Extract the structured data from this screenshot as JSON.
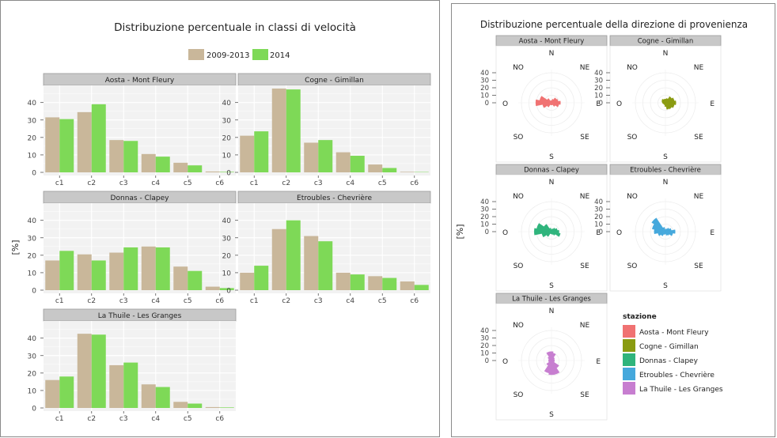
{
  "left": {
    "title": "Distribuzione percentuale in classi di velocità",
    "legend": [
      "2009-2013",
      "2014"
    ],
    "y_label": "[%]",
    "colors": {
      "series_a": "#c9b79a",
      "series_b": "#7ed957",
      "strip": "#c8c8c8",
      "plot_bg": "#f2f2f2",
      "grid": "#ffffff"
    }
  },
  "right": {
    "title": "Distribuzione percentuale della direzione di provenienza",
    "y_label": "[%]",
    "legend_title": "stazione",
    "directions": {
      "n": "N",
      "ne": "NE",
      "e": "E",
      "se": "SE",
      "s": "S",
      "so": "SO",
      "o": "O",
      "no": "NO"
    },
    "radial_ticks": [
      "40",
      "30",
      "20",
      "10",
      "0"
    ]
  },
  "chart_data": [
    {
      "type": "bar",
      "title": "Distribuzione percentuale in classi di velocità",
      "ylabel": "[%]",
      "categories": [
        "c1",
        "c2",
        "c3",
        "c4",
        "c5",
        "c6"
      ],
      "ylim": [
        0,
        48
      ],
      "yticks": [
        0,
        10,
        20,
        30,
        40
      ],
      "series_names": [
        "2009-2013",
        "2014"
      ],
      "facets": [
        {
          "name": "Aosta - Mont Fleury",
          "series": [
            {
              "name": "2009-2013",
              "values": [
                31.5,
                34.5,
                18.5,
                10.5,
                5.5,
                0.5
              ]
            },
            {
              "name": "2014",
              "values": [
                30.5,
                39,
                18,
                9,
                4,
                0.3
              ]
            }
          ]
        },
        {
          "name": "Cogne - Gimillan",
          "series": [
            {
              "name": "2009-2013",
              "values": [
                21,
                48,
                17,
                11.5,
                4.5,
                0.3
              ]
            },
            {
              "name": "2014",
              "values": [
                23.5,
                47.5,
                18.5,
                9.5,
                2.5,
                0.2
              ]
            }
          ]
        },
        {
          "name": "Donnas - Clapey",
          "series": [
            {
              "name": "2009-2013",
              "values": [
                17,
                20.5,
                21.5,
                25,
                13.5,
                2
              ]
            },
            {
              "name": "2014",
              "values": [
                22.5,
                17,
                24.5,
                24.5,
                11,
                1.2
              ]
            }
          ]
        },
        {
          "name": "Etroubles - Chevrière",
          "series": [
            {
              "name": "2009-2013",
              "values": [
                10,
                35,
                31,
                10,
                8,
                5
              ]
            },
            {
              "name": "2014",
              "values": [
                14,
                40,
                28,
                9,
                7,
                3
              ]
            }
          ]
        },
        {
          "name": "La Thuile - Les Granges",
          "series": [
            {
              "name": "2009-2013",
              "values": [
                16,
                42.5,
                24.5,
                13.5,
                3.5,
                0.5
              ]
            },
            {
              "name": "2014",
              "values": [
                18,
                42,
                26,
                12,
                2.5,
                0.3
              ]
            }
          ]
        }
      ]
    },
    {
      "type": "rose",
      "title": "Distribuzione percentuale della direzione di provenienza",
      "ylabel": "[%]",
      "rlim": [
        0,
        40
      ],
      "legend_title": "stazione",
      "sector_order": "clockwise from N, 22.5 degrees each",
      "stations": [
        {
          "name": "Aosta - Mont Fleury",
          "color": "#f07272",
          "values": [
            3,
            5,
            8,
            9,
            12,
            10,
            6,
            3,
            3,
            3,
            7,
            12,
            21,
            16,
            7,
            3
          ]
        },
        {
          "name": "Cogne - Gimillan",
          "color": "#8a9b10",
          "values": [
            5,
            6,
            10,
            12,
            14,
            12,
            10,
            9,
            5,
            3,
            3,
            3,
            4,
            5,
            6,
            5
          ]
        },
        {
          "name": "Donnas - Clapey",
          "color": "#2fb47c",
          "values": [
            3,
            4,
            6,
            8,
            10,
            12,
            6,
            4,
            3,
            3,
            8,
            13,
            23,
            20,
            12,
            5
          ]
        },
        {
          "name": "Etroubles - Chevrière",
          "color": "#45a8dc",
          "values": [
            3,
            4,
            6,
            8,
            13,
            10,
            6,
            5,
            3,
            4,
            7,
            10,
            15,
            18,
            22,
            6
          ]
        },
        {
          "name": "La Thuile - Les Granges",
          "color": "#c77ed0",
          "values": [
            12,
            10,
            5,
            4,
            4,
            4,
            12,
            19,
            19,
            17,
            8,
            4,
            4,
            4,
            6,
            12
          ]
        }
      ]
    }
  ]
}
